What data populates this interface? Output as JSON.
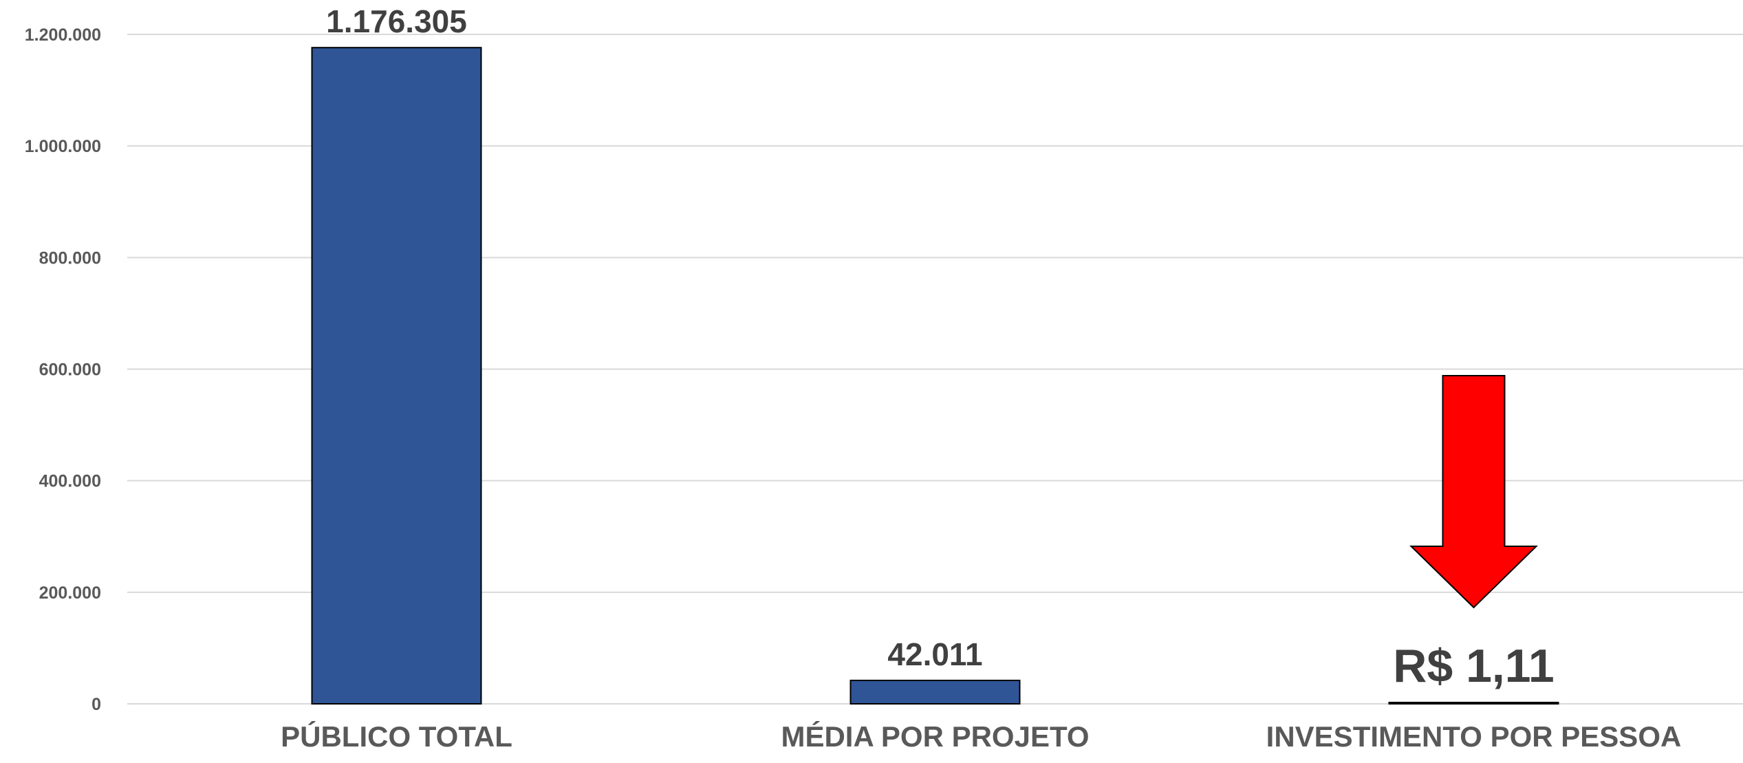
{
  "chart_data": {
    "type": "bar",
    "categories": [
      "PÚBLICO TOTAL",
      "MÉDIA POR PROJETO",
      "INVESTIMENTO POR PESSOA"
    ],
    "values": [
      1176305,
      42011,
      1.11
    ],
    "data_labels": [
      "1.176.305",
      "42.011",
      "R$ 1,11"
    ],
    "ylim": [
      0,
      1200000
    ],
    "yticks": [
      0,
      200000,
      400000,
      600000,
      800000,
      1000000,
      1200000
    ],
    "ytick_labels": [
      "0",
      "200.000",
      "400.000",
      "600.000",
      "800.000",
      "1.000.000",
      "1.200.000"
    ],
    "grid": true,
    "legend": "none",
    "annotation": {
      "type": "arrow-down",
      "target_category": "INVESTIMENTO POR PESSOA",
      "color": "#ff0000"
    },
    "colors": {
      "bar": "#2f5597",
      "bar_outline": "#000000",
      "grid": "#d9d9d9",
      "axis_text": "#595959",
      "label_text": "#404040"
    }
  }
}
